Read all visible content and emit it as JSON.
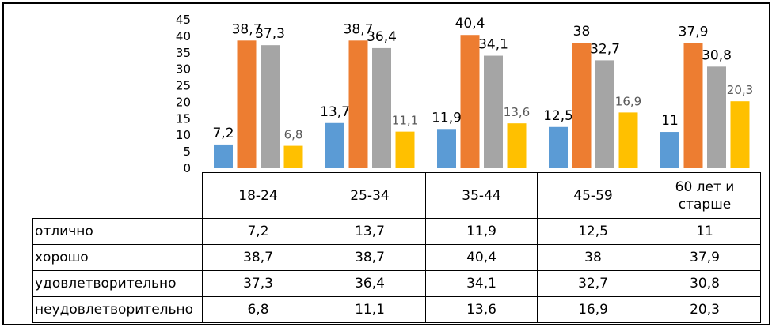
{
  "chart_data": {
    "type": "bar",
    "categories": [
      "18-24",
      "25-34",
      "35-44",
      "45-59",
      "60 лет и старше"
    ],
    "series": [
      {
        "name": "отлично",
        "values": [
          7.2,
          13.7,
          11.9,
          12.5,
          11
        ],
        "labels": [
          "7,2",
          "13,7",
          "11,9",
          "12,5",
          "11"
        ],
        "color": "#5B9BD5"
      },
      {
        "name": "хорошо",
        "values": [
          38.7,
          38.7,
          40.4,
          38,
          37.9
        ],
        "labels": [
          "38,7",
          "38,7",
          "40,4",
          "38",
          "37,9"
        ],
        "color": "#ED7D31"
      },
      {
        "name": "удовлетворительно",
        "values": [
          37.3,
          36.4,
          34.1,
          32.7,
          30.8
        ],
        "labels": [
          "37,3",
          "36,4",
          "34,1",
          "32,7",
          "30,8"
        ],
        "color": "#A5A5A5"
      },
      {
        "name": "неудовлетворительно",
        "values": [
          6.8,
          11.1,
          13.6,
          16.9,
          20.3
        ],
        "labels": [
          "6,8",
          "11,1",
          "13,6",
          "16,9",
          "20,3"
        ],
        "color": "#FFC000"
      }
    ],
    "ylim": [
      0,
      45
    ],
    "yticks": [
      "0",
      "5",
      "10",
      "15",
      "20",
      "25",
      "30",
      "35",
      "40",
      "45"
    ],
    "grid": false,
    "legend": "data-table-below",
    "title": "",
    "xlabel": "",
    "ylabel": ""
  }
}
